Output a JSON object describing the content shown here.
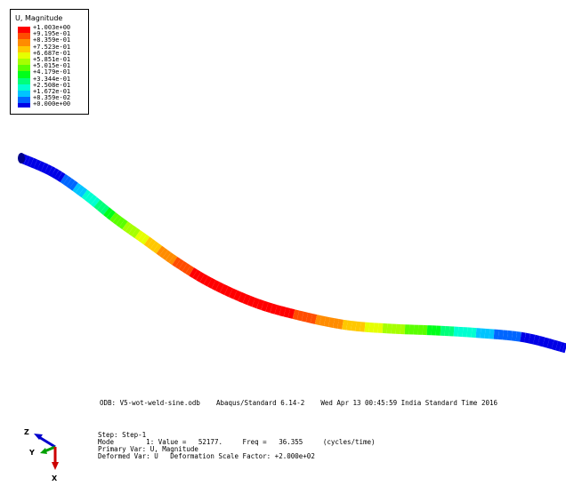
{
  "legend": {
    "title": "U, Magnitude",
    "entries": [
      {
        "label": "+1.003e+00",
        "color": "#ff0000"
      },
      {
        "label": "+9.195e-01",
        "color": "#ff4d00"
      },
      {
        "label": "+8.359e-01",
        "color": "#ff8c00"
      },
      {
        "label": "+7.523e-01",
        "color": "#ffc800"
      },
      {
        "label": "+6.687e-01",
        "color": "#e6ff00"
      },
      {
        "label": "+5.851e-01",
        "color": "#a6ff00"
      },
      {
        "label": "+5.015e-01",
        "color": "#5aff00"
      },
      {
        "label": "+4.179e-01",
        "color": "#00ff1a"
      },
      {
        "label": "+3.344e-01",
        "color": "#00ff7a"
      },
      {
        "label": "+2.508e-01",
        "color": "#00ffd0"
      },
      {
        "label": "+1.672e-01",
        "color": "#00c4ff"
      },
      {
        "label": "+8.359e-02",
        "color": "#0066ff"
      },
      {
        "label": "+0.000e+00",
        "color": "#0000e6"
      }
    ]
  },
  "odb_line": "ODB: V5-wot-weld-sine.odb    Abaqus/Standard 6.14-2    Wed Apr 13 00:45:59 India Standard Time 2016",
  "step_info": {
    "step": "Step: Step-1",
    "mode": "Mode        1: Value =   52177.     Freq =   36.355     (cycles/time)",
    "primary": "Primary Var: U, Magnitude",
    "deformed": "Deformed Var: U   Deformation Scale Factor: +2.000e+02"
  },
  "triad": {
    "z": "Z",
    "y": "Y",
    "x": "X"
  },
  "beam_colors": [
    "#0000e6",
    "#0066ff",
    "#00c4ff",
    "#00ffd0",
    "#00ff7a",
    "#00ff1a",
    "#5aff00",
    "#a6ff00",
    "#e6ff00",
    "#ffc800",
    "#ff8c00",
    "#ff4d00",
    "#ff0000"
  ]
}
